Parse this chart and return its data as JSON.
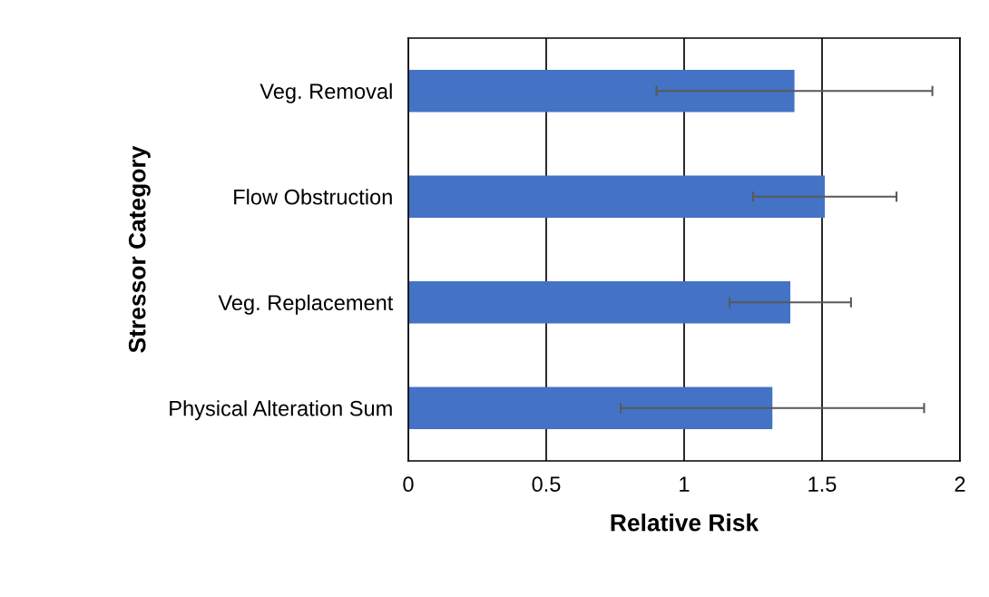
{
  "chart_data": {
    "type": "bar",
    "orientation": "horizontal",
    "xlabel": "Relative Risk",
    "ylabel": "Stressor Category",
    "categories": [
      "Veg. Removal",
      "Flow Obstruction",
      "Veg. Replacement",
      "Physical Alteration Sum"
    ],
    "values": [
      1.4,
      1.51,
      1.385,
      1.32
    ],
    "errors": [
      0.5,
      0.26,
      0.22,
      0.55
    ],
    "color": "#4472c4",
    "xlim": [
      0,
      2
    ],
    "xticks": [
      0,
      0.5,
      1,
      1.5,
      2
    ],
    "grid": "x",
    "legend": false
  }
}
